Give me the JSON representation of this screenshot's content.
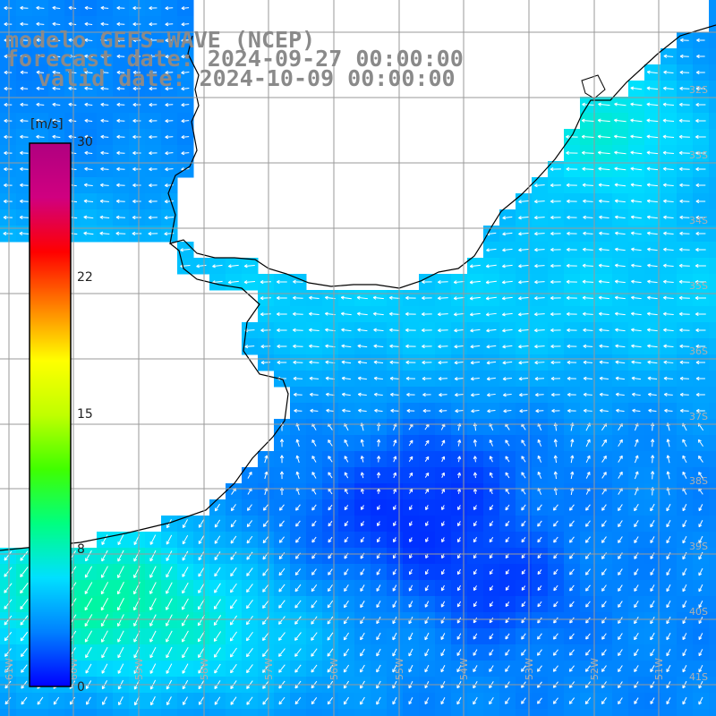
{
  "header": {
    "line1": "modelo GEFS-WAVE (NCEP)",
    "line2": "forecast date: 2024-09-27 00:00:00",
    "line3": "valid date: 2024-10-09 00:00:00"
  },
  "colorbar": {
    "unit": "[m/s]",
    "ticks": [
      "30",
      "22",
      "15",
      "8",
      "0"
    ],
    "tick_values": [
      30,
      22,
      15,
      8,
      0
    ],
    "range": [
      0,
      30
    ],
    "colors": [
      "#0000ff",
      "#0080ff",
      "#00e0ff",
      "#00ff80",
      "#40ff00",
      "#c0ff00",
      "#ffff00",
      "#ff8000",
      "#ff0000",
      "#d00080",
      "#b00080"
    ]
  },
  "map": {
    "lat_labels": [
      "32S",
      "33S",
      "34S",
      "35S",
      "36S",
      "37S",
      "38S",
      "39S",
      "40S",
      "41S"
    ],
    "lon_labels": [
      "61W",
      "60W",
      "59W",
      "58W",
      "57W",
      "56W",
      "55W",
      "54W",
      "53W",
      "52W",
      "51W"
    ],
    "wind_field": "wind speed and direction arrows over ocean"
  }
}
